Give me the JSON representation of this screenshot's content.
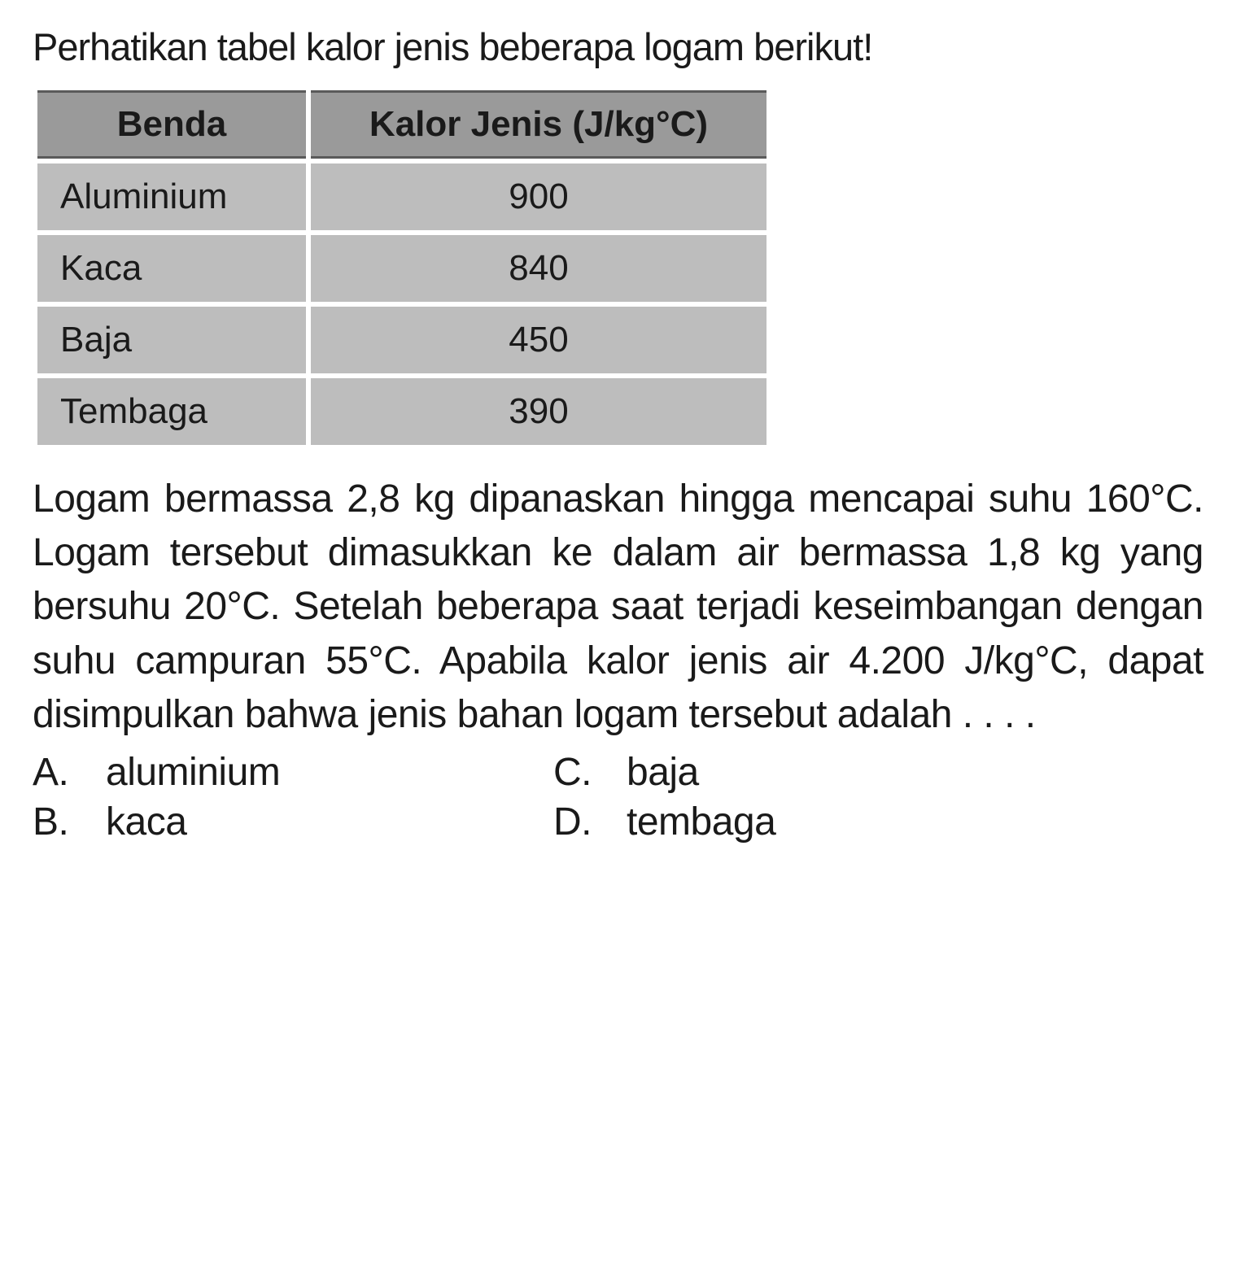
{
  "title": "Perhatikan tabel kalor jenis beberapa logam berikut!",
  "table": {
    "headers": {
      "col1": "Benda",
      "col2": "Kalor Jenis (J/kg°C)"
    },
    "rows": [
      {
        "name": "Aluminium",
        "value": "900"
      },
      {
        "name": "Kaca",
        "value": "840"
      },
      {
        "name": "Baja",
        "value": "450"
      },
      {
        "name": "Tembaga",
        "value": "390"
      }
    ],
    "header_bg": "#9a9a9a",
    "cell_bg": "#bdbdbd",
    "border_color": "#5a5a5a",
    "font_size_pt": 33
  },
  "body": "Logam bermassa 2,8 kg dipanaskan hingga mencapai suhu 160°C. Logam tersebut dimasukkan ke dalam air bermassa 1,8 kg yang bersuhu 20°C. Setelah beberapa saat terjadi keseimbangan dengan suhu campuran 55°C. Apabila kalor jenis air 4.200 J/kg°C, dapat disimpulkan bahwa jenis bahan logam tersebut adalah . . . .",
  "options": {
    "a": {
      "letter": "A.",
      "text": "aluminium"
    },
    "b": {
      "letter": "B.",
      "text": "kaca"
    },
    "c": {
      "letter": "C.",
      "text": "baja"
    },
    "d": {
      "letter": "D.",
      "text": "tembaga"
    }
  },
  "colors": {
    "text": "#1a1a1a",
    "background": "#ffffff"
  }
}
